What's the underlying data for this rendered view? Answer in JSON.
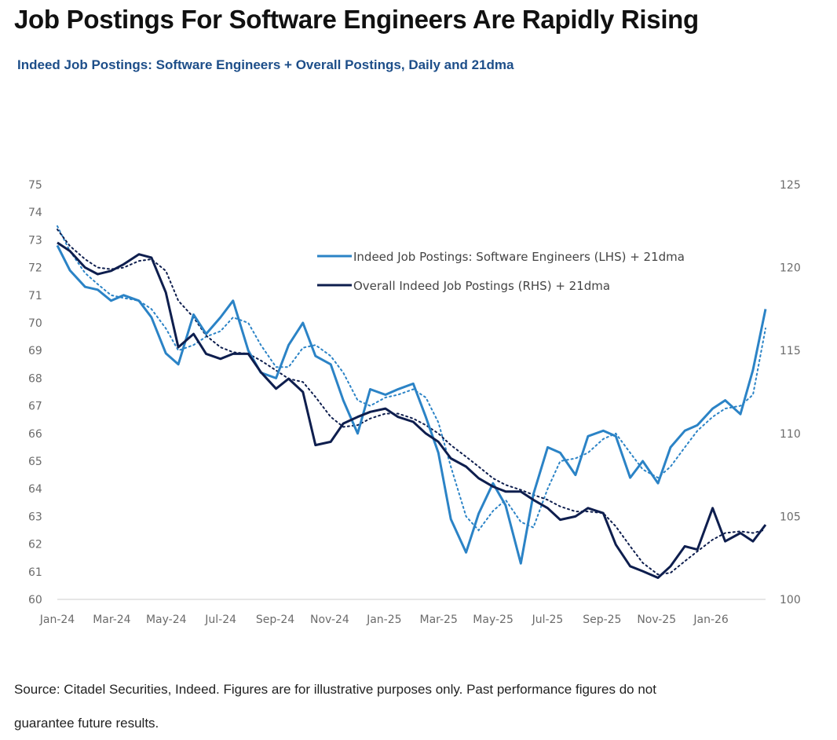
{
  "title": "Job Postings For Software Engineers Are Rapidly Rising",
  "subtitle": "Indeed Job Postings: Software Engineers + Overall Postings, Daily and 21dma",
  "source_line1": "Source: Citadel Securities, Indeed. Figures are for illustrative purposes only. Past performance figures do not",
  "source_line2": "guarantee future results.",
  "chart_data": {
    "type": "line",
    "x_ticks": [
      "Jan-24",
      "Mar-24",
      "May-24",
      "Jul-24",
      "Sep-24",
      "Nov-24",
      "Jan-25",
      "Mar-25",
      "May-25",
      "Jul-25",
      "Sep-25",
      "Nov-25",
      "Jan-26"
    ],
    "ylim_left": [
      60,
      75
    ],
    "ylim_right": [
      100,
      125
    ],
    "yticks_left": [
      60,
      61,
      62,
      63,
      64,
      65,
      66,
      67,
      68,
      69,
      70,
      71,
      72,
      73,
      74,
      75
    ],
    "yticks_right": [
      100,
      105,
      110,
      115,
      120,
      125
    ],
    "legend_position": "top-center",
    "series": [
      {
        "name": "Indeed Job Postings: Software Engineers (LHS) + 21dma",
        "axis": "left",
        "color": "#2b83c6",
        "x": [
          "2024-01-01",
          "2024-01-15",
          "2024-02-01",
          "2024-02-15",
          "2024-03-01",
          "2024-03-15",
          "2024-04-01",
          "2024-04-15",
          "2024-05-01",
          "2024-05-15",
          "2024-06-01",
          "2024-06-15",
          "2024-07-01",
          "2024-07-15",
          "2024-08-01",
          "2024-08-15",
          "2024-09-01",
          "2024-09-15",
          "2024-10-01",
          "2024-10-15",
          "2024-11-01",
          "2024-11-15",
          "2024-12-01",
          "2024-12-15",
          "2025-01-01",
          "2025-01-15",
          "2025-02-01",
          "2025-02-15",
          "2025-03-01",
          "2025-03-15",
          "2025-04-01",
          "2025-04-15",
          "2025-05-01",
          "2025-05-15",
          "2025-06-01",
          "2025-06-15",
          "2025-07-01",
          "2025-07-15",
          "2025-08-01",
          "2025-08-15",
          "2025-09-01",
          "2025-09-15",
          "2025-10-01",
          "2025-10-15",
          "2025-11-01",
          "2025-11-15",
          "2025-12-01",
          "2025-12-15",
          "2026-01-01",
          "2026-01-15",
          "2026-02-01",
          "2026-02-15",
          "2026-03-01"
        ],
        "values": [
          72.8,
          71.9,
          71.3,
          71.2,
          70.8,
          71.0,
          70.8,
          70.2,
          68.9,
          68.5,
          70.3,
          69.6,
          70.2,
          70.8,
          69.0,
          68.2,
          68.0,
          69.2,
          70.0,
          68.8,
          68.5,
          67.2,
          66.0,
          67.6,
          67.4,
          67.6,
          67.8,
          66.6,
          65.3,
          62.9,
          61.7,
          63.1,
          64.2,
          63.4,
          61.3,
          63.8,
          65.5,
          65.3,
          64.5,
          65.9,
          66.1,
          65.9,
          64.4,
          65.0,
          64.2,
          65.5,
          66.1,
          66.3,
          66.9,
          67.2,
          66.7,
          68.3,
          70.5
        ],
        "ma": [
          73.5,
          72.6,
          71.8,
          71.4,
          71.0,
          70.9,
          70.8,
          70.5,
          69.8,
          69.0,
          69.2,
          69.5,
          69.7,
          70.2,
          70.0,
          69.2,
          68.4,
          68.4,
          69.1,
          69.2,
          68.8,
          68.2,
          67.2,
          67.0,
          67.3,
          67.4,
          67.6,
          67.3,
          66.4,
          64.8,
          63.0,
          62.5,
          63.2,
          63.6,
          62.8,
          62.6,
          64.0,
          65.0,
          65.1,
          65.3,
          65.8,
          66.0,
          65.3,
          64.7,
          64.4,
          64.8,
          65.5,
          66.1,
          66.6,
          66.9,
          67.0,
          67.4,
          69.8
        ]
      },
      {
        "name": "Overall Indeed Job Postings (RHS) + 21dma",
        "axis": "right",
        "color": "#0e1e4e",
        "x": [
          "2024-01-01",
          "2024-01-15",
          "2024-02-01",
          "2024-02-15",
          "2024-03-01",
          "2024-03-15",
          "2024-04-01",
          "2024-04-15",
          "2024-05-01",
          "2024-05-15",
          "2024-06-01",
          "2024-06-15",
          "2024-07-01",
          "2024-07-15",
          "2024-08-01",
          "2024-08-15",
          "2024-09-01",
          "2024-09-15",
          "2024-10-01",
          "2024-10-15",
          "2024-11-01",
          "2024-11-15",
          "2024-12-01",
          "2024-12-15",
          "2025-01-01",
          "2025-01-15",
          "2025-02-01",
          "2025-02-15",
          "2025-03-01",
          "2025-03-15",
          "2025-04-01",
          "2025-04-15",
          "2025-05-01",
          "2025-05-15",
          "2025-06-01",
          "2025-06-15",
          "2025-07-01",
          "2025-07-15",
          "2025-08-01",
          "2025-08-15",
          "2025-09-01",
          "2025-09-15",
          "2025-10-01",
          "2025-10-15",
          "2025-11-01",
          "2025-11-15",
          "2025-12-01",
          "2025-12-15",
          "2026-01-01",
          "2026-01-15",
          "2026-02-01",
          "2026-02-15",
          "2026-03-01"
        ],
        "values": [
          121.5,
          121.0,
          120.0,
          119.6,
          119.8,
          120.2,
          120.8,
          120.6,
          118.5,
          115.2,
          116.0,
          114.8,
          114.5,
          114.8,
          114.8,
          113.7,
          112.7,
          113.3,
          112.5,
          109.3,
          109.5,
          110.6,
          111.0,
          111.3,
          111.5,
          111.0,
          110.7,
          110.0,
          109.5,
          108.5,
          108.0,
          107.3,
          106.8,
          106.5,
          106.5,
          106.0,
          105.5,
          104.8,
          105.0,
          105.5,
          105.2,
          103.3,
          102.0,
          101.7,
          101.3,
          102.0,
          103.2,
          103.0,
          105.5,
          103.5,
          104.0,
          103.5,
          104.5
        ],
        "ma": [
          122.3,
          121.3,
          120.5,
          120.0,
          119.9,
          120.0,
          120.4,
          120.5,
          119.8,
          118.0,
          117.0,
          115.9,
          115.2,
          114.9,
          114.8,
          114.4,
          113.8,
          113.3,
          113.1,
          112.2,
          111.0,
          110.4,
          110.5,
          110.9,
          111.2,
          111.2,
          110.9,
          110.5,
          110.0,
          109.3,
          108.6,
          108.0,
          107.3,
          106.9,
          106.6,
          106.3,
          106.0,
          105.6,
          105.3,
          105.3,
          105.2,
          104.4,
          103.2,
          102.2,
          101.5,
          101.6,
          102.3,
          102.9,
          103.6,
          104.0,
          104.1,
          104.0,
          104.2
        ]
      }
    ]
  }
}
